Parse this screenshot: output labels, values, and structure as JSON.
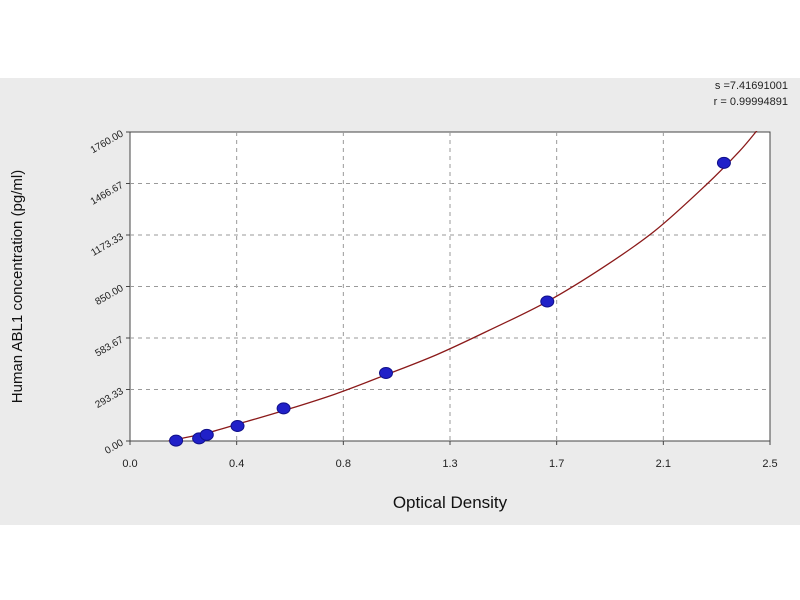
{
  "stats": {
    "s": "s =7.41691001",
    "r": "r = 0.99994891"
  },
  "colors": {
    "background": "#ebebeb",
    "plot_area": "#ffffff",
    "curve": "#8b1a1a",
    "points": "#2020c8",
    "point_edge": "#10108a",
    "grid": "#9a9a9a"
  },
  "chart_data": {
    "type": "scatter",
    "title": "",
    "xlabel": "Optical Density",
    "ylabel": "Human ABL1 concentration (pg/ml)",
    "xlim": [
      0.0,
      2.5
    ],
    "ylim": [
      0.0,
      1750.0
    ],
    "grid": true,
    "legend": "none",
    "x_ticks": [
      "0.0",
      "0.4",
      "0.8",
      "1.3",
      "1.7",
      "2.1",
      "2.5"
    ],
    "y_ticks": [
      "0.00",
      "293.33",
      "583.67",
      "850.00",
      "1173.33",
      "1466.67",
      "1760.00"
    ],
    "points": [
      {
        "x": 0.18,
        "y": 2
      },
      {
        "x": 0.27,
        "y": 15
      },
      {
        "x": 0.3,
        "y": 35
      },
      {
        "x": 0.42,
        "y": 85
      },
      {
        "x": 0.6,
        "y": 185
      },
      {
        "x": 1.0,
        "y": 385
      },
      {
        "x": 1.63,
        "y": 790
      },
      {
        "x": 2.32,
        "y": 1575
      }
    ],
    "fit_curve": [
      {
        "x": 0.15,
        "y": 0
      },
      {
        "x": 0.3,
        "y": 45
      },
      {
        "x": 0.45,
        "y": 108
      },
      {
        "x": 0.6,
        "y": 172
      },
      {
        "x": 0.8,
        "y": 265
      },
      {
        "x": 1.0,
        "y": 375
      },
      {
        "x": 1.2,
        "y": 490
      },
      {
        "x": 1.4,
        "y": 625
      },
      {
        "x": 1.63,
        "y": 790
      },
      {
        "x": 1.85,
        "y": 985
      },
      {
        "x": 2.05,
        "y": 1190
      },
      {
        "x": 2.25,
        "y": 1450
      },
      {
        "x": 2.38,
        "y": 1640
      },
      {
        "x": 2.45,
        "y": 1760
      }
    ]
  }
}
